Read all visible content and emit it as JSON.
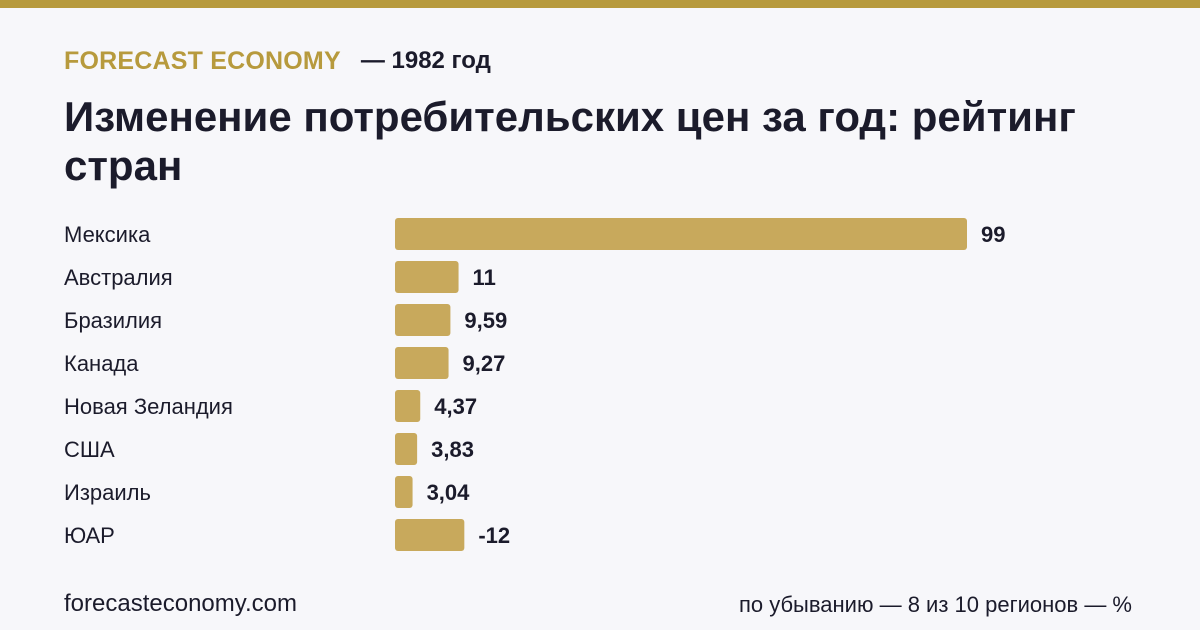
{
  "header": {
    "brand": "FORECAST ECONOMY",
    "year_label": "— 1982 год"
  },
  "title": "Изменение потребительских цен за год: рейтинг стран",
  "colors": {
    "accent": "#b79a3d",
    "bar": "#c8a95c",
    "text": "#1b1b2b",
    "background": "#f7f7fa"
  },
  "chart_data": {
    "type": "bar",
    "orientation": "horizontal",
    "categories": [
      "Мексика",
      "Австралия",
      "Бразилия",
      "Канада",
      "Новая Зеландия",
      "США",
      "Израиль",
      "ЮАР"
    ],
    "values": [
      99,
      11,
      9.59,
      9.27,
      4.37,
      3.83,
      3.04,
      -12
    ],
    "value_labels": [
      "99",
      "11",
      "9,59",
      "9,27",
      "4,37",
      "3,83",
      "3,04",
      "-12"
    ],
    "unit": "%",
    "sort": "descending",
    "grid": false,
    "legend": "none"
  },
  "footer": {
    "source": "forecasteconomy.com",
    "note": "по убыванию — 8 из 10 регионов — %"
  }
}
